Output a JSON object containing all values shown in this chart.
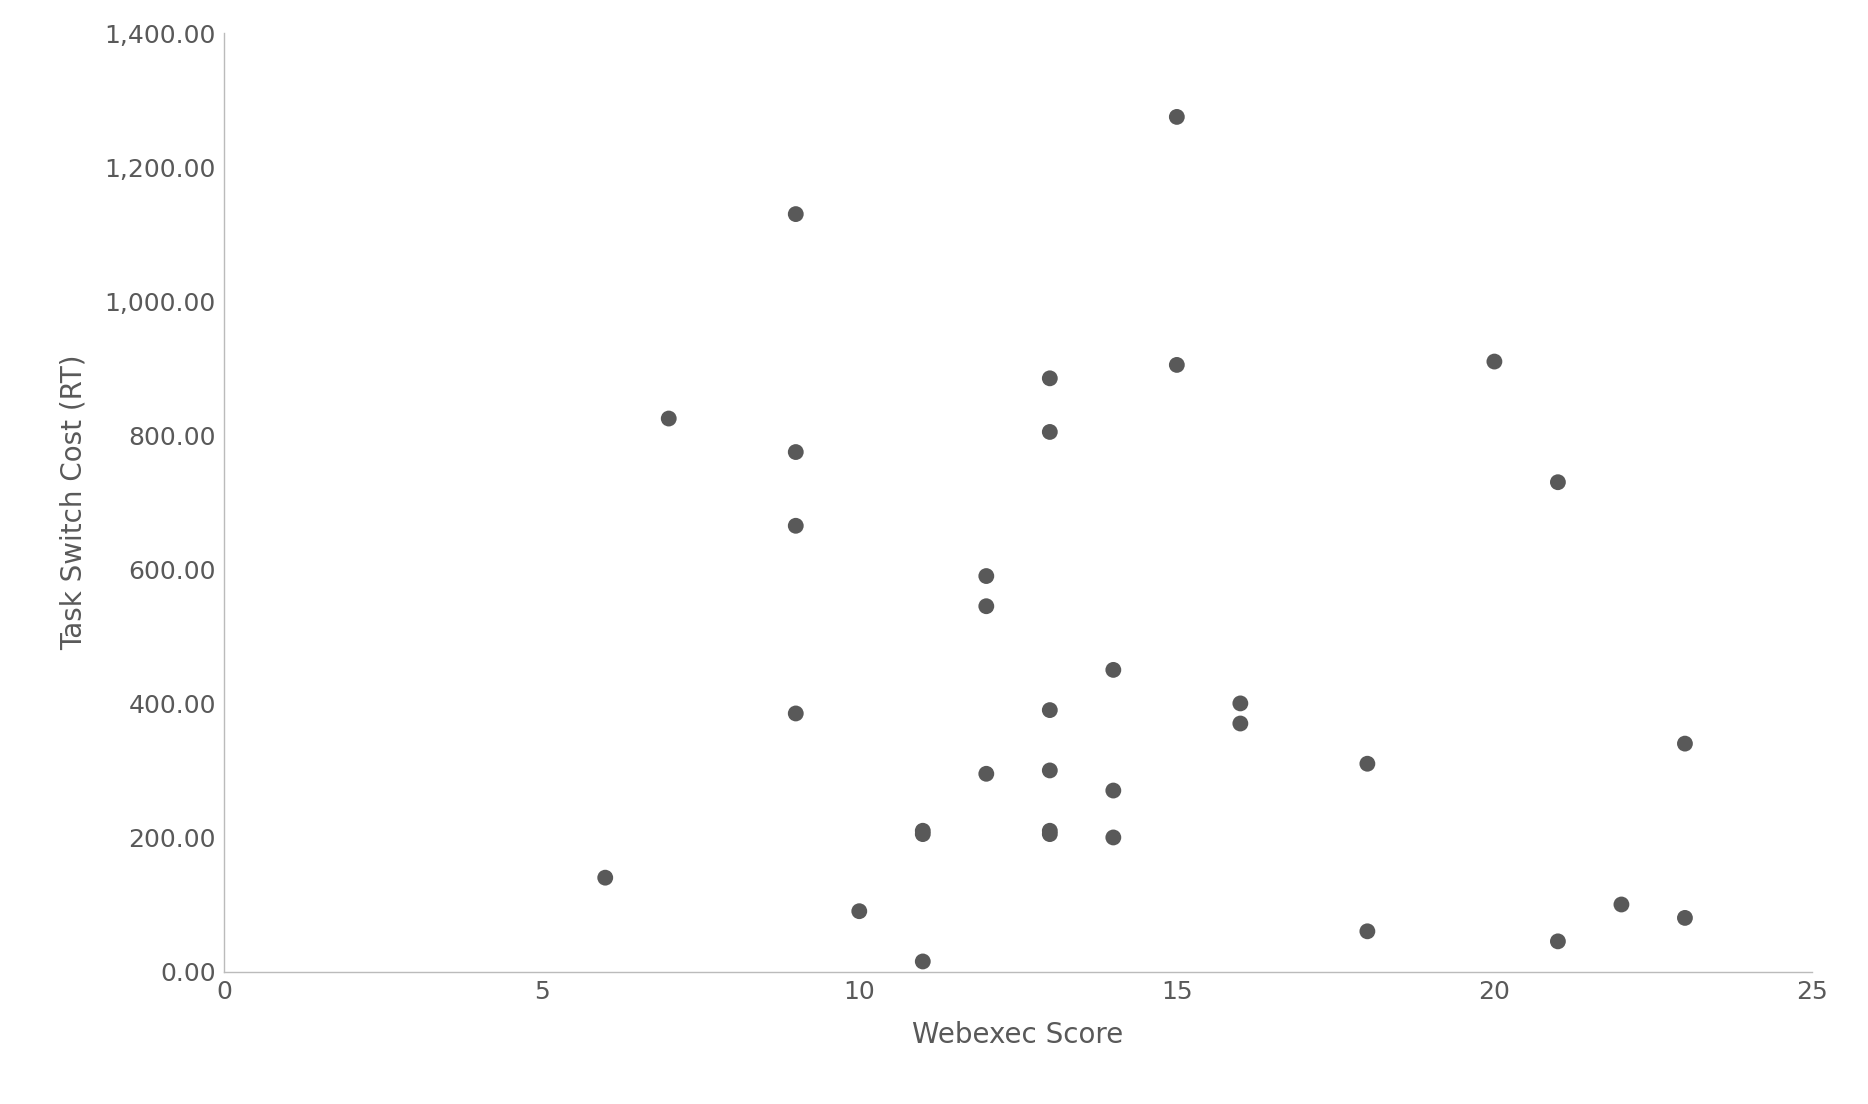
{
  "x": [
    6,
    7,
    9,
    9,
    9,
    9,
    10,
    11,
    11,
    11,
    12,
    12,
    12,
    13,
    13,
    13,
    13,
    13,
    13,
    14,
    14,
    14,
    15,
    15,
    16,
    16,
    18,
    18,
    20,
    21,
    21,
    22,
    23,
    23
  ],
  "y": [
    140,
    825,
    775,
    1130,
    665,
    385,
    90,
    15,
    205,
    210,
    590,
    545,
    295,
    885,
    805,
    390,
    300,
    205,
    210,
    450,
    270,
    200,
    1275,
    905,
    400,
    370,
    310,
    60,
    910,
    45,
    730,
    100,
    340,
    80
  ],
  "xlabel": "Webexec Score",
  "ylabel": "Task Switch Cost (RT)",
  "xlim": [
    0,
    25
  ],
  "ylim": [
    0,
    1400
  ],
  "xticks": [
    0,
    5,
    10,
    15,
    20,
    25
  ],
  "yticks": [
    0,
    200,
    400,
    600,
    800,
    1000,
    1200,
    1400
  ],
  "ytick_labels": [
    "0.00",
    "200.00",
    "400.00",
    "600.00",
    "800.00",
    "1,000.00",
    "1,200.00",
    "1,400.00"
  ],
  "marker_color": "#595959",
  "marker_size": 130,
  "background_color": "#ffffff",
  "xlabel_fontsize": 20,
  "ylabel_fontsize": 20,
  "tick_fontsize": 18,
  "font_family": "Palatino Linotype",
  "spine_color": "#bbbbbb",
  "text_color": "#595959"
}
